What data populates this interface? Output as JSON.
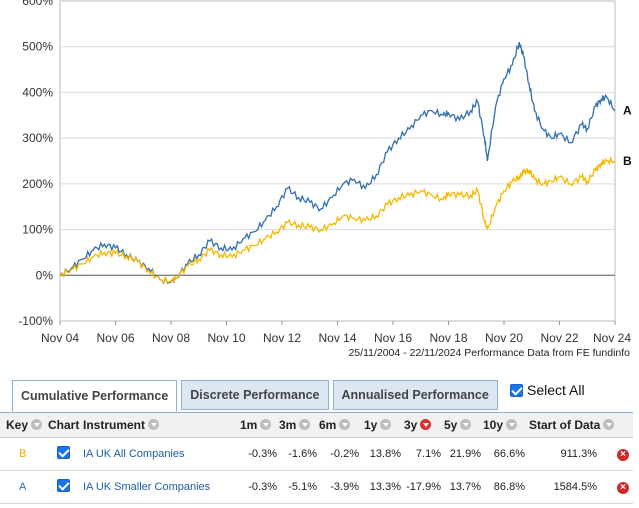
{
  "chart_data": {
    "type": "line",
    "y_ticks": [
      "600%",
      "500%",
      "400%",
      "300%",
      "200%",
      "100%",
      "0%",
      "-100%"
    ],
    "ylim": [
      -100,
      600
    ],
    "x_ticks": [
      "Nov 04",
      "Nov 06",
      "Nov 08",
      "Nov 10",
      "Nov 12",
      "Nov 14",
      "Nov 16",
      "Nov 18",
      "Nov 20",
      "Nov 22",
      "Nov 24"
    ],
    "x_years": [
      2004,
      2006,
      2008,
      2010,
      2012,
      2014,
      2016,
      2018,
      2020,
      2022,
      2024
    ],
    "xlim": [
      2004.9,
      2024.9
    ],
    "caption": "25/11/2004 - 22/11/2024 Performance Data from FE fundinfo",
    "series": [
      {
        "name": "A",
        "color": "#2f6fb0",
        "x": [
          2004.9,
          2005.3,
          2005.7,
          2006.1,
          2006.5,
          2006.9,
          2007.3,
          2007.7,
          2008.1,
          2008.5,
          2008.9,
          2009.1,
          2009.5,
          2009.9,
          2010.3,
          2010.7,
          2011.1,
          2011.5,
          2011.9,
          2012.3,
          2012.7,
          2013.1,
          2013.5,
          2013.9,
          2014.3,
          2014.7,
          2015.1,
          2015.5,
          2015.9,
          2016.3,
          2016.7,
          2017.1,
          2017.5,
          2017.9,
          2018.3,
          2018.7,
          2018.9,
          2019.3,
          2019.7,
          2019.95,
          2020.2,
          2020.3,
          2020.6,
          2020.9,
          2021.2,
          2021.45,
          2021.6,
          2021.8,
          2022.0,
          2022.3,
          2022.6,
          2022.9,
          2023.3,
          2023.7,
          2023.9,
          2024.2,
          2024.4,
          2024.6,
          2024.9
        ],
        "values": [
          0,
          15,
          35,
          55,
          68,
          60,
          45,
          30,
          15,
          -10,
          -15,
          -5,
          25,
          45,
          75,
          60,
          55,
          80,
          95,
          120,
          150,
          190,
          170,
          160,
          145,
          170,
          200,
          210,
          190,
          220,
          270,
          300,
          320,
          350,
          360,
          350,
          355,
          340,
          360,
          380,
          300,
          250,
          370,
          430,
          460,
          510,
          480,
          420,
          360,
          320,
          300,
          310,
          290,
          330,
          320,
          370,
          385,
          390,
          360
        ]
      },
      {
        "name": "B",
        "color": "#f5b800",
        "x": [
          2004.9,
          2005.3,
          2005.7,
          2006.1,
          2006.5,
          2006.9,
          2007.3,
          2007.7,
          2008.1,
          2008.5,
          2008.9,
          2009.1,
          2009.5,
          2009.9,
          2010.3,
          2010.7,
          2011.1,
          2011.5,
          2011.9,
          2012.3,
          2012.7,
          2013.1,
          2013.5,
          2013.9,
          2014.3,
          2014.7,
          2015.1,
          2015.5,
          2015.9,
          2016.3,
          2016.7,
          2017.1,
          2017.5,
          2017.9,
          2018.3,
          2018.7,
          2018.9,
          2019.3,
          2019.7,
          2019.95,
          2020.2,
          2020.3,
          2020.6,
          2020.9,
          2021.2,
          2021.45,
          2021.6,
          2021.8,
          2022.0,
          2022.3,
          2022.6,
          2022.9,
          2023.3,
          2023.7,
          2023.9,
          2024.2,
          2024.4,
          2024.6,
          2024.9
        ],
        "values": [
          0,
          12,
          25,
          40,
          50,
          48,
          42,
          30,
          10,
          -10,
          -13,
          -5,
          20,
          35,
          55,
          45,
          40,
          55,
          65,
          80,
          95,
          115,
          110,
          105,
          100,
          110,
          130,
          125,
          120,
          130,
          155,
          170,
          175,
          185,
          175,
          165,
          180,
          175,
          175,
          185,
          120,
          100,
          150,
          185,
          205,
          215,
          225,
          230,
          210,
          200,
          205,
          215,
          200,
          215,
          205,
          230,
          245,
          250,
          250
        ]
      }
    ]
  },
  "tabs": [
    "Cumulative Performance",
    "Discrete Performance",
    "Annualised Performance"
  ],
  "select_all_label": "Select All",
  "table": {
    "headers": [
      "Key",
      "Chart",
      "Instrument",
      "1m",
      "3m",
      "6m",
      "1y",
      "3y",
      "5y",
      "10y",
      "Start of Data"
    ],
    "rows": [
      {
        "key": "B",
        "instrument": "IA UK All Companies",
        "m1": "-0.3%",
        "m3": "-1.6%",
        "m6": "-0.2%",
        "y1": "13.8%",
        "y3": "7.1%",
        "y5": "21.9%",
        "y10": "66.6%",
        "start": "911.3%"
      },
      {
        "key": "A",
        "instrument": "IA UK Smaller Companies",
        "m1": "-0.3%",
        "m3": "-5.1%",
        "m6": "-3.9%",
        "y1": "13.3%",
        "y3": "-17.9%",
        "y5": "13.7%",
        "y10": "86.8%",
        "start": "1584.5%"
      }
    ]
  }
}
